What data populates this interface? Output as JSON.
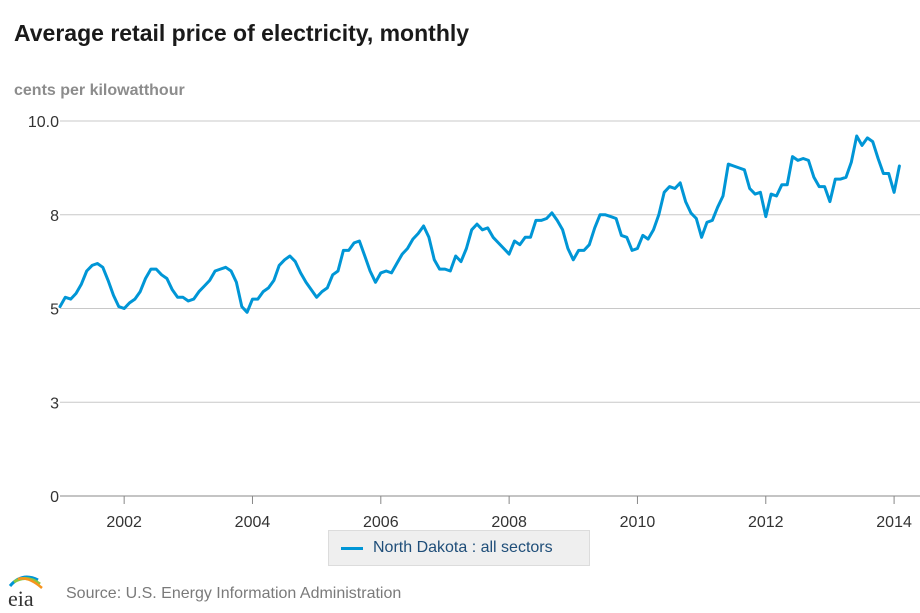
{
  "chart_data": {
    "type": "line",
    "title": "Average retail price of electricity, monthly",
    "ylabel": "cents per kilowatthour",
    "xlabel": "",
    "ylim": [
      0,
      10
    ],
    "xlim": [
      2001.0,
      2014.17
    ],
    "yticks": [
      0,
      2.5,
      5,
      7.5,
      10
    ],
    "ytick_labels": [
      "0",
      "3",
      "5",
      "8",
      "10.0"
    ],
    "xticks": [
      2002,
      2004,
      2006,
      2008,
      2010,
      2012,
      2014
    ],
    "xtick_labels": [
      "2002",
      "2004",
      "2006",
      "2008",
      "2010",
      "2012",
      "2014"
    ],
    "grid": true,
    "legend_position": "bottom-center",
    "series": [
      {
        "name": "North Dakota : all sectors",
        "color": "#0096d6",
        "start": "2001-01",
        "frequency": "monthly",
        "values": [
          5.05,
          5.3,
          5.25,
          5.4,
          5.65,
          6.0,
          6.15,
          6.2,
          6.1,
          5.75,
          5.35,
          5.05,
          5.0,
          5.15,
          5.25,
          5.45,
          5.8,
          6.05,
          6.05,
          5.9,
          5.8,
          5.5,
          5.3,
          5.3,
          5.2,
          5.25,
          5.45,
          5.6,
          5.75,
          6.0,
          6.05,
          6.1,
          6.0,
          5.7,
          5.05,
          4.9,
          5.25,
          5.25,
          5.45,
          5.55,
          5.75,
          6.15,
          6.3,
          6.4,
          6.25,
          5.95,
          5.7,
          5.5,
          5.3,
          5.45,
          5.55,
          5.9,
          6.0,
          6.55,
          6.55,
          6.75,
          6.8,
          6.4,
          6.0,
          5.7,
          5.95,
          6.0,
          5.95,
          6.2,
          6.45,
          6.6,
          6.85,
          7.0,
          7.2,
          6.9,
          6.3,
          6.05,
          6.05,
          6.0,
          6.4,
          6.25,
          6.6,
          7.1,
          7.25,
          7.1,
          7.15,
          6.9,
          6.75,
          6.6,
          6.45,
          6.8,
          6.7,
          6.9,
          6.9,
          7.35,
          7.35,
          7.4,
          7.55,
          7.35,
          7.1,
          6.6,
          6.3,
          6.55,
          6.55,
          6.7,
          7.15,
          7.5,
          7.5,
          7.45,
          7.4,
          6.95,
          6.9,
          6.55,
          6.6,
          6.95,
          6.85,
          7.1,
          7.5,
          8.1,
          8.25,
          8.2,
          8.35,
          7.85,
          7.55,
          7.4,
          6.9,
          7.3,
          7.35,
          7.7,
          8.0,
          8.85,
          8.8,
          8.75,
          8.7,
          8.2,
          8.05,
          8.1,
          7.45,
          8.05,
          8.0,
          8.3,
          8.3,
          9.05,
          8.95,
          9.0,
          8.95,
          8.5,
          8.25,
          8.25,
          7.85,
          8.45,
          8.45,
          8.5,
          8.9,
          9.6,
          9.35,
          9.55,
          9.45,
          9.0,
          8.6,
          8.6,
          8.1,
          8.8
        ]
      }
    ]
  },
  "legend": {
    "label": "North Dakota : all sectors"
  },
  "source": "Source: U.S. Energy Information Administration",
  "logo": {
    "text": "eia",
    "colors": [
      "#0096d6",
      "#8cc63f",
      "#f7941d"
    ]
  }
}
